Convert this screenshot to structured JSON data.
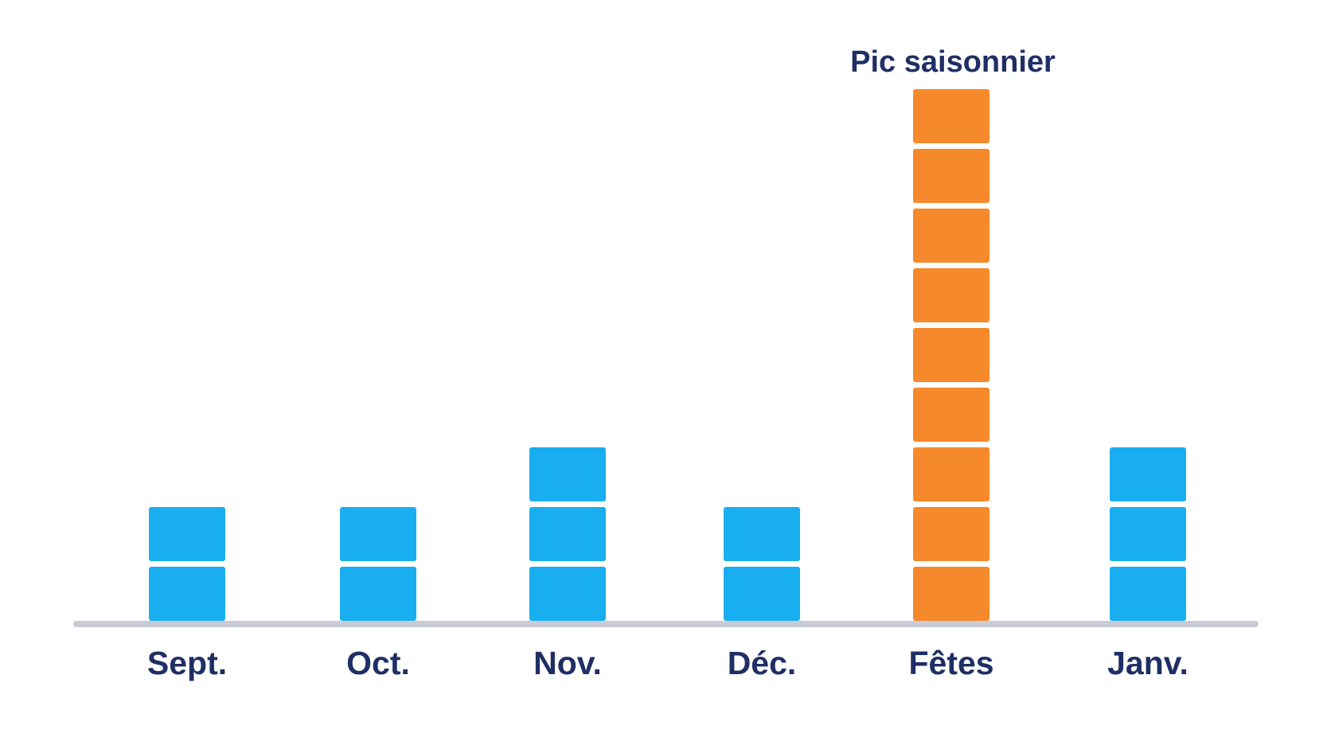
{
  "chart_data": {
    "type": "bar",
    "categories": [
      "Sept.",
      "Oct.",
      "Nov.",
      "Déc.",
      "Fêtes",
      "Janv."
    ],
    "values": [
      2,
      2,
      3,
      2,
      9,
      3
    ],
    "unit_blocks": true,
    "highlight_category": "Fêtes",
    "annotations": [
      {
        "category": "Fêtes",
        "text": "Pic saisonnier"
      }
    ],
    "title": "",
    "xlabel": "",
    "ylabel": "",
    "ylim": [
      0,
      9
    ],
    "grid": false,
    "legend": "none"
  },
  "colors": {
    "bar_default": "#19aeef",
    "bar_highlight": "#f6892b",
    "label_text": "#1f2f66",
    "baseline": "#c9ccd6",
    "background": "#ffffff"
  }
}
